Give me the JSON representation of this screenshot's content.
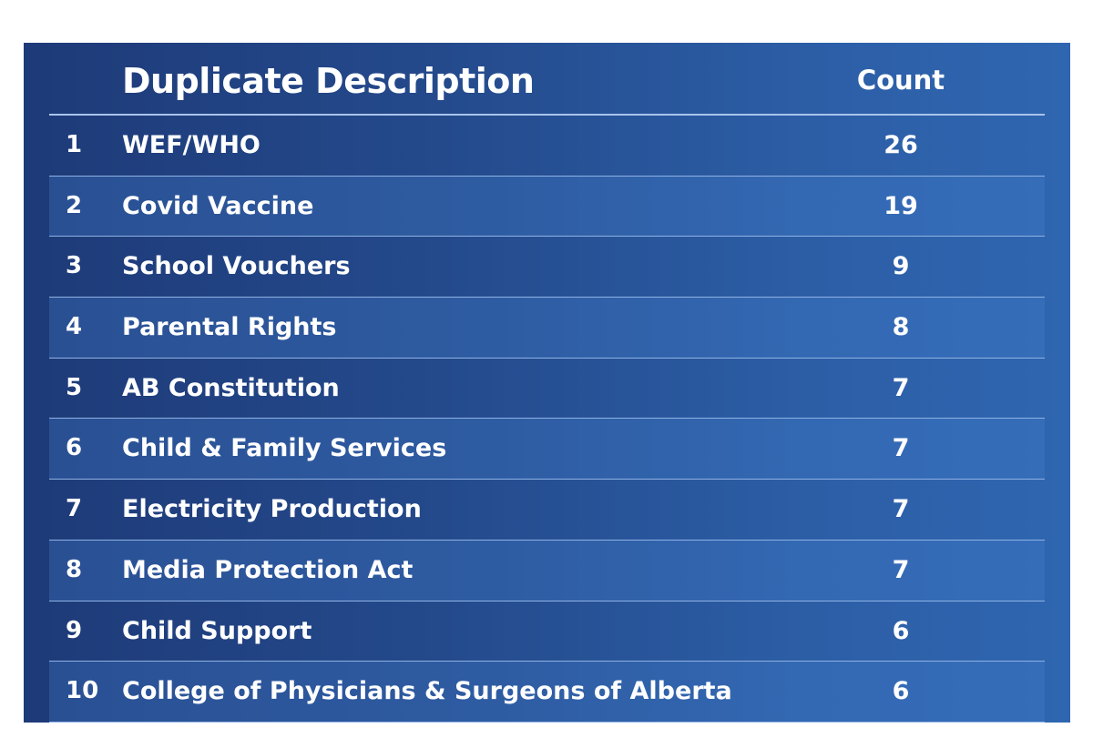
{
  "chart_data": {
    "type": "table",
    "columns": [
      "",
      "Duplicate Description",
      "Count"
    ],
    "rows": [
      {
        "rank": "1",
        "description": "WEF/WHO",
        "count": "26"
      },
      {
        "rank": "2",
        "description": "Covid Vaccine",
        "count": "19"
      },
      {
        "rank": "3",
        "description": "School Vouchers",
        "count": "9"
      },
      {
        "rank": "4",
        "description": "Parental Rights",
        "count": "8"
      },
      {
        "rank": "5",
        "description": "AB Constitution",
        "count": "7"
      },
      {
        "rank": "6",
        "description": "Child & Family Services",
        "count": "7"
      },
      {
        "rank": "7",
        "description": "Electricity Production",
        "count": "7"
      },
      {
        "rank": "8",
        "description": "Media Protection Act",
        "count": "7"
      },
      {
        "rank": "9",
        "description": "Child Support",
        "count": "6"
      },
      {
        "rank": "10",
        "description": "College of Physicians & Surgeons of Alberta",
        "count": "6"
      }
    ]
  },
  "colors": {
    "background_dark": "#1e3a78",
    "background_light": "#2f66b0",
    "divider": "#8fb2e4",
    "text": "#ffffff"
  }
}
